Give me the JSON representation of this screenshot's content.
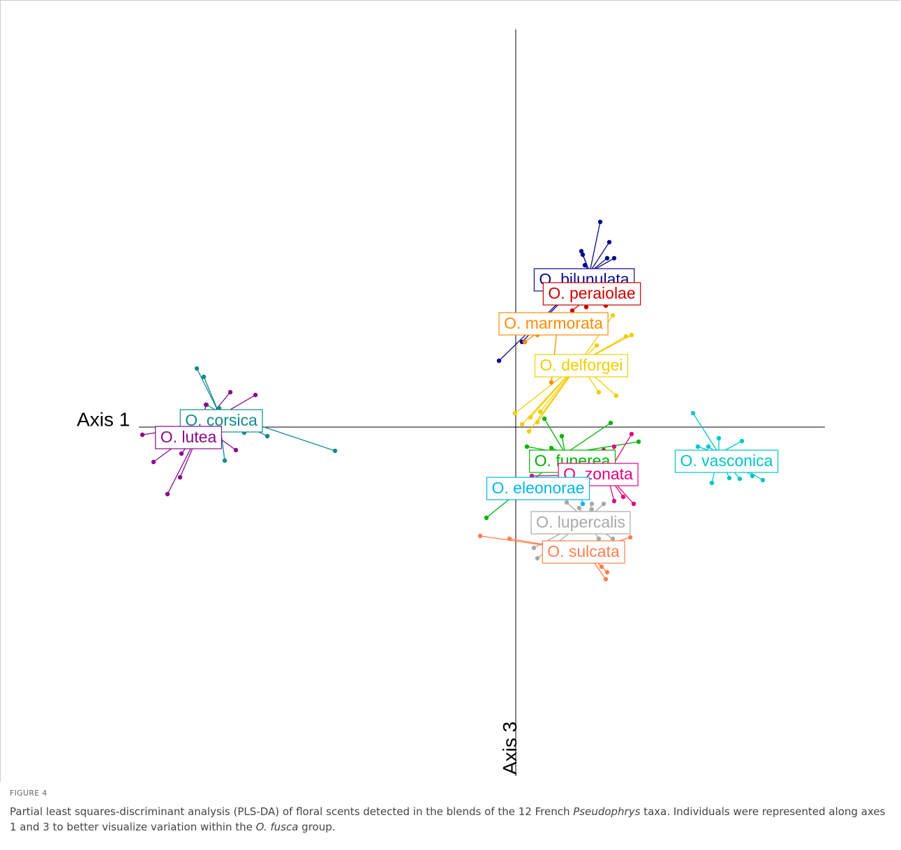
{
  "chart_data": {
    "type": "scatter",
    "x_label": "Axis 1",
    "y_label": "Axis 3",
    "xlim": [
      -5.4,
      4.4
    ],
    "ylim": [
      -5.0,
      5.7
    ],
    "series": [
      {
        "name": "O. corsica",
        "color": "#0f8b8d",
        "center": [
          -4.26,
          0.22
        ],
        "x": [
          -4.57,
          -4.47,
          -4.25,
          -3.89,
          -3.56,
          -4.17,
          -2.59,
          -4.43
        ],
        "y": [
          0.84,
          0.72,
          0.27,
          -0.08,
          -0.13,
          -0.48,
          -0.34,
          0.32
        ]
      },
      {
        "name": "O. lutea",
        "color": "#8b0a8b",
        "center": [
          -4.49,
          0.02
        ],
        "x": [
          -4.99,
          -4.81,
          -5.19,
          -5.35,
          -4.09,
          -3.73,
          -4.01,
          -4.44,
          -4.79
        ],
        "y": [
          -0.96,
          -0.72,
          -0.5,
          -0.11,
          0.5,
          0.46,
          -0.33,
          0.32,
          -0.38
        ]
      },
      {
        "name": "O. bilunulata",
        "color": "#0a0a8b",
        "center": [
          1.06,
          2.22
        ],
        "x": [
          1.21,
          1.34,
          0.94,
          1.41,
          0.99,
          1.31,
          -0.24,
          0.09,
          0.96
        ],
        "y": [
          2.94,
          2.65,
          2.52,
          2.42,
          2.32,
          2.42,
          0.95,
          1.22,
          2.47
        ]
      },
      {
        "name": "O. peraiolae",
        "color": "#cc0000",
        "center": [
          1.06,
          1.87
        ],
        "x": [
          1.29,
          1.01,
          0.81
        ],
        "y": [
          1.74,
          1.72,
          1.67
        ]
      },
      {
        "name": "O. marmorata",
        "color": "#ff8c00",
        "center": [
          0.61,
          1.57
        ],
        "x": [
          0.13,
          0.51,
          0.71,
          0.31
        ],
        "y": [
          1.22,
          0.64,
          1.42,
          1.32
        ]
      },
      {
        "name": "O. delforgei",
        "color": "#f2cd00",
        "center": [
          0.91,
          0.92
        ],
        "x": [
          1.66,
          1.58,
          1.39,
          1.19,
          1.44,
          -0.01,
          0.09,
          0.21,
          0.35,
          0.19,
          0.31,
          1.16
        ],
        "y": [
          1.32,
          1.3,
          1.6,
          0.5,
          0.45,
          0.2,
          0.04,
          0.14,
          0.22,
          -0.06,
          0.07,
          1.17
        ]
      },
      {
        "name": "O. funerea",
        "color": "#00b400",
        "center": [
          0.71,
          -0.38
        ],
        "x": [
          0.41,
          1.36,
          1.76,
          0.16,
          -0.42,
          0.66,
          0.51
        ],
        "y": [
          0.12,
          0.06,
          -0.21,
          -0.28,
          -1.3,
          -0.13,
          -0.3
        ]
      },
      {
        "name": "O. zonata",
        "color": "#e6007e",
        "center": [
          1.31,
          -0.68
        ],
        "x": [
          1.66,
          1.26,
          1.41,
          1.69,
          1.54,
          1.41,
          0.23
        ],
        "y": [
          -0.1,
          -0.33,
          -0.28,
          -1.1,
          -1.0,
          -1.06,
          -0.7
        ]
      },
      {
        "name": "O. eleonorae",
        "color": "#00b5ef",
        "center": [
          0.91,
          -0.88
        ],
        "x": [
          0.91,
          0.96,
          0.61
        ],
        "y": [
          -0.83,
          -1.1,
          -0.78
        ]
      },
      {
        "name": "O. vasconica",
        "color": "#00c5c8",
        "center": [
          2.91,
          -0.38
        ],
        "x": [
          2.54,
          2.91,
          3.24,
          3.06,
          2.81,
          3.54,
          3.39,
          3.21,
          2.61,
          2.76
        ],
        "y": [
          0.2,
          -0.16,
          -0.2,
          -0.73,
          -0.8,
          -0.76,
          -0.7,
          -0.74,
          -0.28,
          -0.28
        ]
      },
      {
        "name": "O. lupercalis",
        "color": "#a9a9a9",
        "center": [
          1.01,
          -1.33
        ],
        "x": [
          0.73,
          0.91,
          1.09,
          1.26,
          1.39,
          1.19,
          0.26,
          0.31,
          1.09
        ],
        "y": [
          -1.08,
          -1.16,
          -1.1,
          -1.1,
          -1.6,
          -1.6,
          -1.73,
          -1.88,
          -1.18
        ]
      },
      {
        "name": "O. sulcata",
        "color": "#ff7f50",
        "center": [
          1.01,
          -1.78
        ],
        "x": [
          -0.51,
          -0.09,
          1.64,
          1.29,
          1.31,
          1.23
        ],
        "y": [
          -1.56,
          -1.6,
          -1.58,
          -2.18,
          -2.08,
          -2.0
        ]
      }
    ]
  },
  "caption": {
    "figure_label": "FIGURE 4",
    "parts": [
      "Partial least squares-discriminant analysis (PLS-DA) of floral scents detected in the blends of the 12 French ",
      "Pseudophrys",
      " taxa. Individuals were represented along axes 1 and 3 to better visualize variation within the ",
      "O. fusca",
      " group."
    ]
  }
}
